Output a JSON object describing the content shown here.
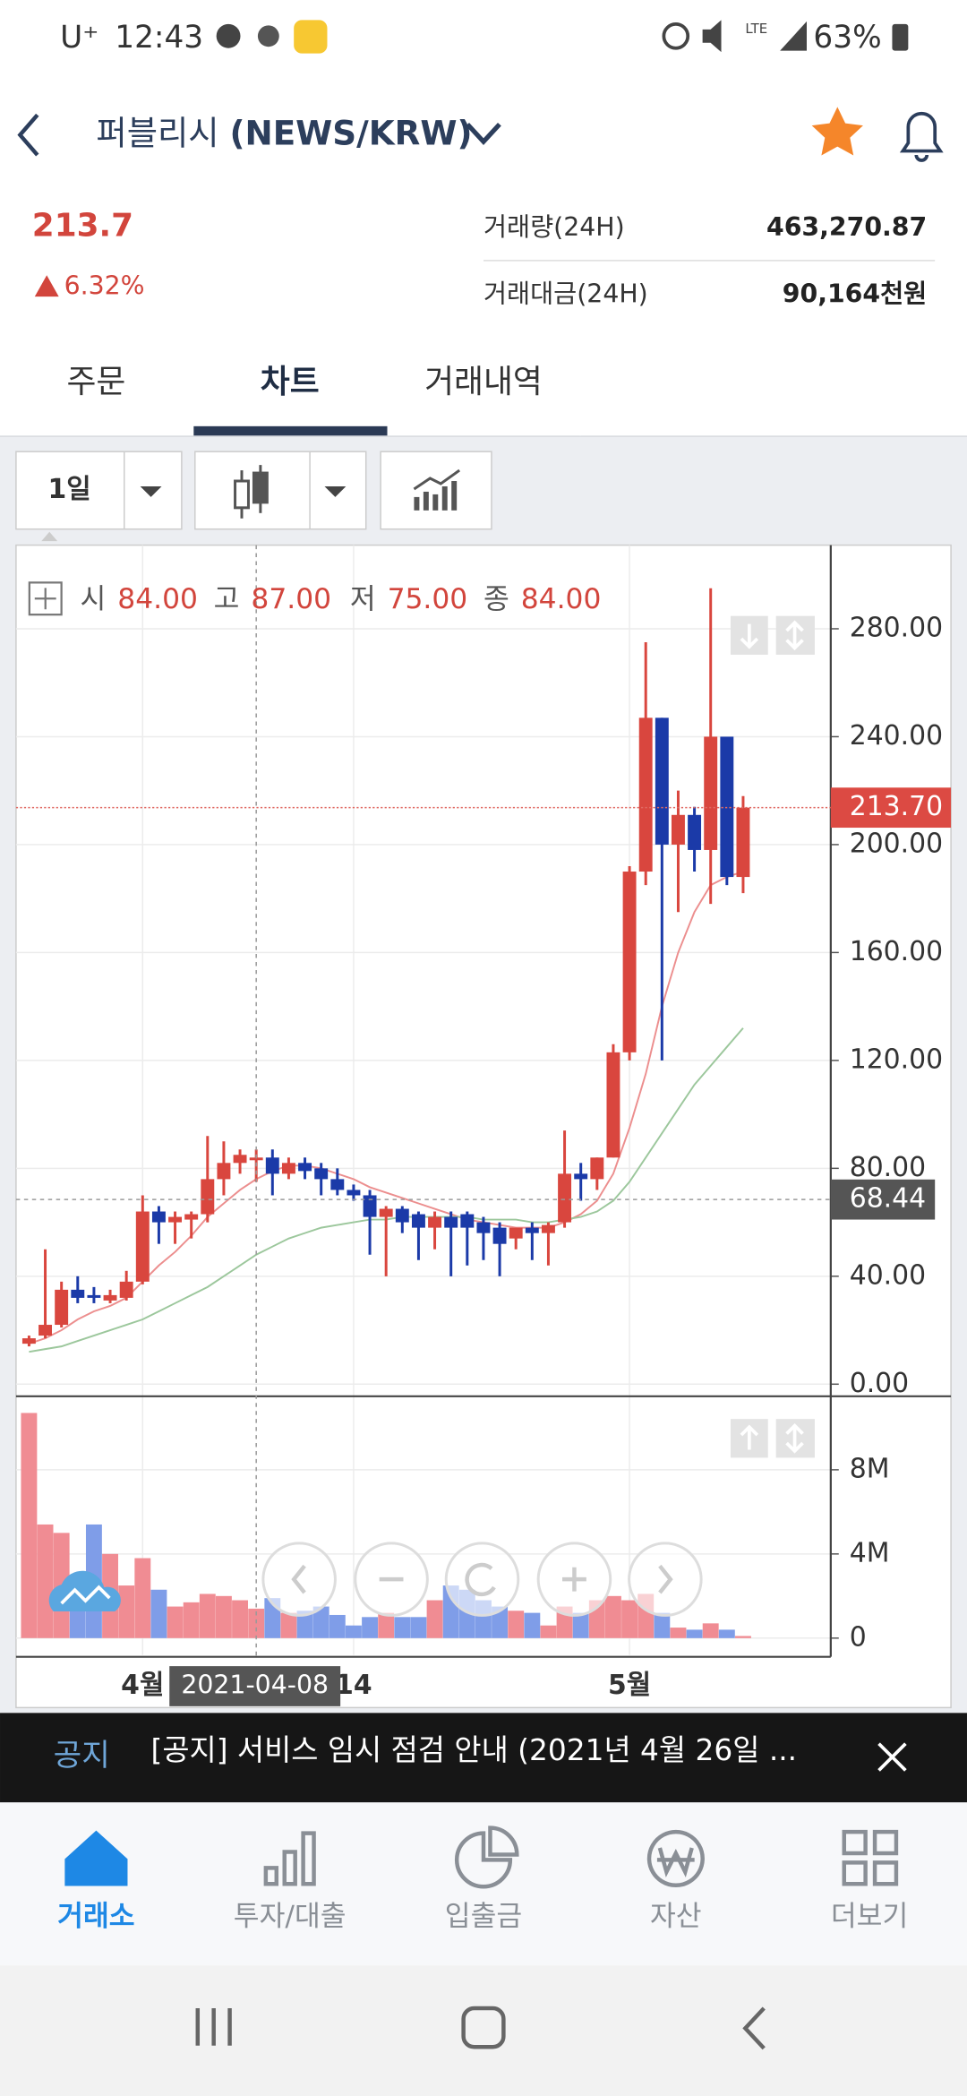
{
  "status_bar": {
    "carrier": "U⁺",
    "time": "12:43",
    "network": "LTE",
    "battery": "63%"
  },
  "header": {
    "name": "퍼블리시",
    "pair": "(NEWS/KRW)"
  },
  "ticker": {
    "price": "213.7",
    "change": "6.32%",
    "stats": [
      {
        "label": "거래량(24H)",
        "value": "463,270.87"
      },
      {
        "label": "거래대금(24H)",
        "value": "90,164천원"
      }
    ]
  },
  "tabs": {
    "items": [
      "주문",
      "차트",
      "거래내역"
    ],
    "active": 1
  },
  "toolbar": {
    "interval": "1일"
  },
  "chart_data": {
    "type": "candlestick",
    "legend": {
      "labels": [
        "시",
        "고",
        "저",
        "종"
      ],
      "values": [
        "84.00",
        "87.00",
        "75.00",
        "84.00"
      ]
    },
    "open": [
      15,
      18,
      22,
      35,
      33,
      31,
      32,
      38,
      64,
      60,
      61,
      63,
      76,
      82,
      84,
      84,
      78,
      82,
      80,
      76,
      72,
      70,
      62,
      65,
      63,
      58,
      62,
      63,
      60,
      58,
      54,
      58,
      56,
      60,
      78,
      76,
      84,
      123,
      190,
      247,
      200,
      211,
      198,
      240,
      188
    ],
    "high": [
      18,
      50,
      38,
      40,
      36,
      35,
      42,
      70,
      66,
      64,
      64,
      92,
      90,
      87,
      87,
      87,
      84,
      84,
      82,
      80,
      74,
      72,
      66,
      66,
      64,
      64,
      64,
      64,
      62,
      60,
      58,
      60,
      60,
      94,
      82,
      84,
      126,
      192,
      275,
      247,
      220,
      214,
      295,
      240,
      218
    ],
    "low": [
      14,
      17,
      21,
      30,
      30,
      30,
      31,
      37,
      52,
      52,
      54,
      60,
      70,
      78,
      75,
      70,
      76,
      76,
      70,
      70,
      68,
      48,
      40,
      56,
      46,
      50,
      40,
      44,
      46,
      40,
      50,
      46,
      44,
      58,
      68,
      72,
      84,
      120,
      185,
      120,
      175,
      190,
      178,
      185,
      182
    ],
    "close": [
      17,
      22,
      35,
      32,
      32,
      33,
      38,
      64,
      60,
      62,
      63,
      76,
      82,
      85,
      84,
      78,
      82,
      79,
      76,
      72,
      70,
      62,
      65,
      60,
      58,
      62,
      58,
      58,
      56,
      52,
      58,
      56,
      59,
      78,
      76,
      84,
      123,
      190,
      247,
      200,
      211,
      198,
      240,
      188,
      213.7
    ],
    "up_color": "#d9463e",
    "down_color": "#1b3aa8",
    "ma": [
      {
        "color": "#ec8e8e",
        "values": [
          15,
          17,
          20,
          24,
          27,
          29,
          32,
          38,
          44,
          49,
          55,
          62,
          67,
          72,
          76,
          79,
          81,
          81,
          80,
          78,
          76,
          73,
          71,
          69,
          67,
          65,
          63,
          61,
          60,
          59,
          58,
          58,
          58,
          60,
          63,
          68,
          78,
          95,
          115,
          140,
          160,
          175,
          185,
          188,
          190
        ]
      },
      {
        "color": "#9cc79c",
        "values": [
          12,
          13,
          14,
          16,
          18,
          20,
          22,
          24,
          27,
          30,
          33,
          36,
          40,
          44,
          48,
          51,
          54,
          56,
          58,
          59,
          60,
          61,
          61,
          62,
          62,
          62,
          62,
          62,
          61,
          61,
          61,
          60,
          60,
          61,
          62,
          64,
          68,
          75,
          84,
          93,
          102,
          111,
          118,
          125,
          132
        ]
      }
    ],
    "xlim": [
      -0.8,
      49.4
    ],
    "xticks": [
      {
        "value": 7,
        "label": "4월"
      },
      {
        "value": 20,
        "label": "14"
      },
      {
        "value": 37,
        "label": "5월"
      }
    ],
    "ylim": [
      -3,
      311
    ],
    "yticks": [
      {
        "value": 0,
        "label": "0.00"
      },
      {
        "value": 40,
        "label": "40.00"
      },
      {
        "value": 80,
        "label": "80.00"
      },
      {
        "value": 120,
        "label": "120.00"
      },
      {
        "value": 160,
        "label": "160.00"
      },
      {
        "value": 200,
        "label": "200.00"
      },
      {
        "value": 240,
        "label": "240.00"
      },
      {
        "value": 280,
        "label": "280.00"
      }
    ],
    "last_price": {
      "value": 213.7,
      "label": "213.70"
    },
    "crosshair": {
      "x": 14,
      "value": 68.44,
      "label": "68.44",
      "date": "2021-04-08"
    },
    "volume": {
      "values": [
        10700000,
        5400000,
        5000000,
        3000000,
        5400000,
        4000000,
        2500000,
        3800000,
        2300000,
        1500000,
        1700000,
        2100000,
        2000000,
        1800000,
        1400000,
        1900000,
        1200000,
        1300000,
        1500000,
        1100000,
        600000,
        1000000,
        1200000,
        1000000,
        1000000,
        1800000,
        2500000,
        2300000,
        1800000,
        1500000,
        1300000,
        1200000,
        600000,
        1500000,
        1200000,
        1800000,
        2000000,
        1800000,
        2100000,
        1200000,
        500000,
        400000,
        700000,
        400000,
        100000
      ],
      "up_color": "#f08c93",
      "down_color": "#7f9de8",
      "ylim": [
        -800000,
        11430000
      ],
      "yticks": [
        0,
        {
          "value": 4000000,
          "label": "4M"
        },
        {
          "value": 8000000,
          "label": "8M"
        }
      ]
    }
  },
  "notice": {
    "label": "공지",
    "text": "[공지] 서비스 임시 점검 안내 (2021년 4월 26일 ..."
  },
  "nav": {
    "items": [
      "거래소",
      "투자/대출",
      "입출금",
      "자산",
      "더보기"
    ],
    "active": 0
  }
}
